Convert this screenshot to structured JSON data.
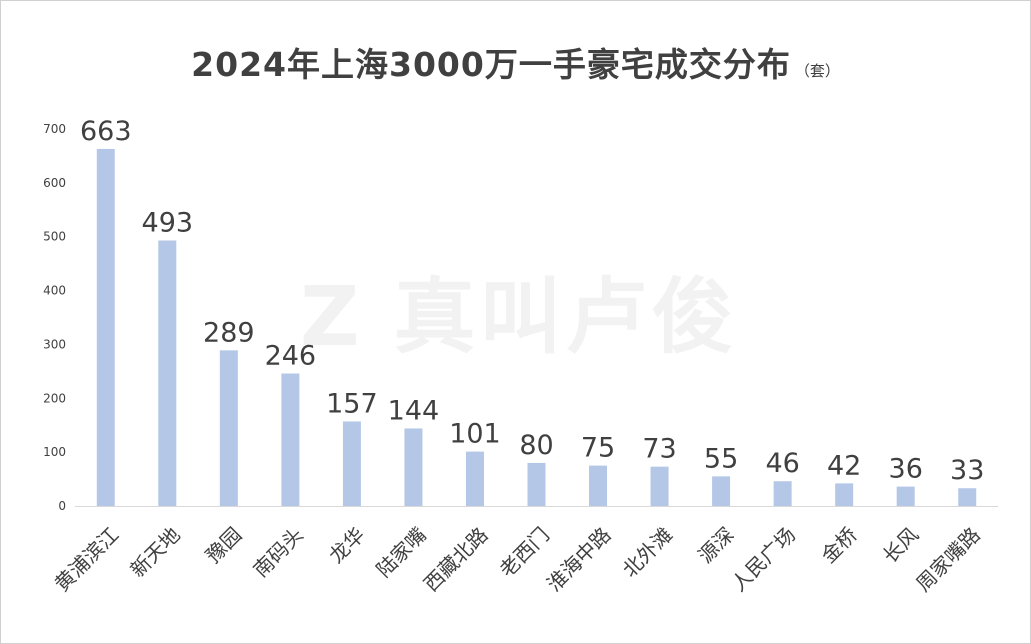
{
  "title": "2024年上海3000万一手豪宅成交分布",
  "subtitle": "（套）",
  "watermark": {
    "logo": "Z",
    "text": "真叫卢俊"
  },
  "colors": {
    "bar": "#b4c7e7",
    "axis": "#d9d9d9",
    "label": "#404040",
    "watermark": "#f2f2f2"
  },
  "chart_data": {
    "type": "bar",
    "title": "2024年上海3000万一手豪宅成交分布",
    "subtitle": "（套）",
    "xlabel": "",
    "ylabel": "",
    "ylim": [
      0,
      700
    ],
    "yticks": [
      0,
      100,
      200,
      300,
      400,
      500,
      600,
      700
    ],
    "grid": false,
    "legend": "none",
    "categories": [
      "黄浦滨江",
      "新天地",
      "豫园",
      "南码头",
      "龙华",
      "陆家嘴",
      "西藏北路",
      "老西门",
      "淮海中路",
      "北外滩",
      "源深",
      "人民广场",
      "金桥",
      "长风",
      "周家嘴路"
    ],
    "values": [
      663,
      493,
      289,
      246,
      157,
      144,
      101,
      80,
      75,
      73,
      55,
      46,
      42,
      36,
      33
    ],
    "data_labels": [
      "663",
      "493",
      "289",
      "246",
      "157",
      "144",
      "101",
      "80",
      "75",
      "73",
      "55",
      "46",
      "42",
      "36",
      "33"
    ]
  }
}
